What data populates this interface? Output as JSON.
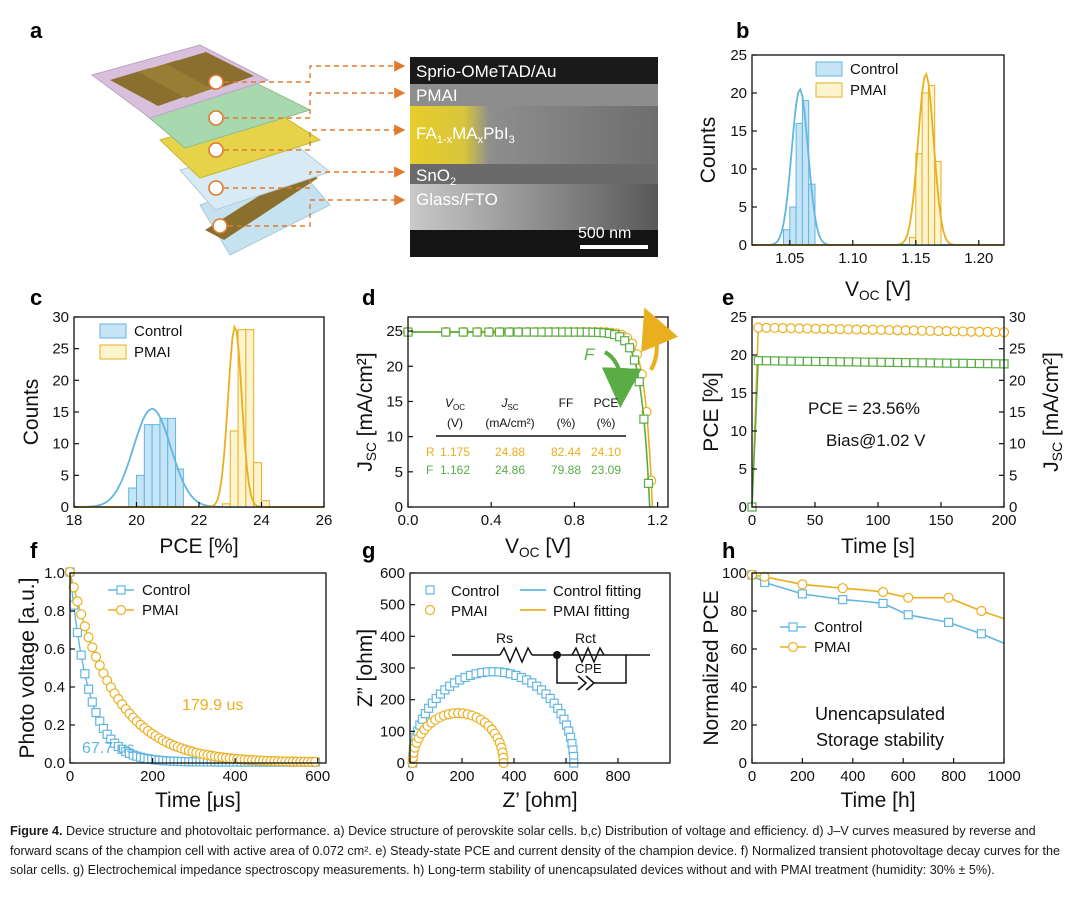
{
  "colors": {
    "control": "#62b6e1",
    "control_fill": "#c5e4f5",
    "pmai": "#eaaf1e",
    "pmai_fill": "#fbf4cf",
    "forward": "#5aac45"
  },
  "panels": {
    "a": {
      "letter": "a",
      "layer_labels": [
        "Sprio-OMeTAD/Au",
        "PMAI",
        "FA1-xMAxPbI3",
        "SnO2",
        "Glass/FTO"
      ],
      "perovskite_main": "FA",
      "perovskite_sub1": "1-x",
      "perovskite_mid": "MA",
      "perovskite_sub2": "x",
      "perovskite_end": "PbI",
      "perovskite_sub3": "3",
      "sno2_main": "SnO",
      "sno2_sub": "2",
      "scalebar": "500 nm"
    },
    "b": {
      "letter": "b",
      "xlabel_main": "V",
      "xlabel_sub": "OC",
      "xlabel_unit": " [V]",
      "ylabel": "Counts"
    },
    "c": {
      "letter": "c",
      "xlabel": "PCE [%]",
      "ylabel": "Counts"
    },
    "d": {
      "letter": "d",
      "xlabel_main": "V",
      "xlabel_sub": "OC",
      "xlabel_unit": " [V]",
      "ylabel_main": "J",
      "ylabel_sub": "SC",
      "ylabel_unit": " [mA/cm²]",
      "arrow_r": "R",
      "arrow_f": "F",
      "table": {
        "headers": [
          {
            "main": "V",
            "sub": "OC",
            "unit": "(V)"
          },
          {
            "main": "J",
            "sub": "SC",
            "unit": "(mA/cm²)"
          },
          {
            "main": "FF",
            "sub": "",
            "unit": "(%)"
          },
          {
            "main": "PCE",
            "sub": "",
            "unit": "(%)"
          }
        ],
        "rows": [
          {
            "label": "R",
            "values": [
              "1.175",
              "24.88",
              "82.44",
              "24.10"
            ]
          },
          {
            "label": "F",
            "values": [
              "1.162",
              "24.86",
              "79.88",
              "23.09"
            ]
          }
        ]
      }
    },
    "e": {
      "letter": "e",
      "xlabel": "Time [s]",
      "ylabel": "PCE [%]",
      "ylabel2_main": "J",
      "ylabel2_sub": "SC",
      "ylabel2_unit": " [mA/cm²]",
      "annotation_pce": "PCE = 23.56%",
      "annotation_bias": "Bias@1.02 V"
    },
    "f": {
      "letter": "f",
      "xlabel": "Time [μs]",
      "ylabel": "Photo voltage [a.u.]",
      "tau_control": "67.7 us",
      "tau_pmai": "179.9 us"
    },
    "g": {
      "letter": "g",
      "xlabel": "Z’ [ohm]",
      "ylabel": "Z” [ohm]",
      "circuit_rs": "Rs",
      "circuit_rct": "Rct",
      "circuit_cpe": "CPE"
    },
    "h": {
      "letter": "h",
      "xlabel": "Time [h]",
      "ylabel": "Normalized PCE",
      "annotation_1": "Unencapsulated",
      "annotation_2": "Storage stability"
    }
  },
  "caption": {
    "label": "Figure 4.",
    "text": "Device structure and photovoltaic performance. a) Device structure of perovskite solar cells. b,c) Distribution of voltage and efficiency. d) J–V curves measured by reverse and forward scans of the champion cell with active area of 0.072 cm². e) Steady-state PCE and current density of the champion device. f) Normalized transient photovoltage decay curves for the solar cells. g) Electrochemical impedance spectroscopy measurements. h) Long-term stability of unencapsulated devices without and with PMAI treatment (humidity: 30% ± 5%)."
  },
  "chart_data": [
    {
      "id": "b",
      "type": "bar",
      "title": "",
      "xlabel": "VOC [V]",
      "ylabel": "Counts",
      "xlim": [
        1.02,
        1.22
      ],
      "ylim": [
        0,
        25
      ],
      "xticks": [
        1.05,
        1.1,
        1.15,
        1.2
      ],
      "xtick_labels": [
        "1.05",
        "1.10",
        "1.15",
        "1.20"
      ],
      "yticks": [
        0,
        5,
        10,
        15,
        20,
        25
      ],
      "bin_width": 0.005,
      "series": [
        {
          "name": "Control",
          "kind": "histogram",
          "bins": [
            1.045,
            1.05,
            1.055,
            1.06,
            1.065,
            1.07
          ],
          "counts": [
            2,
            5,
            16,
            19,
            8,
            0
          ],
          "fit": {
            "mean": 1.058,
            "sigma": 0.0065,
            "peak": 20.5
          }
        },
        {
          "name": "PMAI",
          "kind": "histogram",
          "bins": [
            1.145,
            1.15,
            1.155,
            1.16,
            1.165
          ],
          "counts": [
            1,
            12,
            20,
            21,
            11
          ],
          "fit": {
            "mean": 1.158,
            "sigma": 0.0062,
            "peak": 22.5
          }
        }
      ],
      "legend": [
        "Control",
        "PMAI"
      ],
      "legend_position": "top-right"
    },
    {
      "id": "c",
      "type": "bar",
      "xlabel": "PCE [%]",
      "ylabel": "Counts",
      "xlim": [
        18,
        26
      ],
      "ylim": [
        0,
        30
      ],
      "xticks": [
        18,
        20,
        22,
        24,
        26
      ],
      "yticks": [
        0,
        5,
        10,
        15,
        20,
        25,
        30
      ],
      "bin_width": 0.25,
      "series": [
        {
          "name": "Control",
          "kind": "histogram",
          "bins": [
            19.75,
            20.0,
            20.25,
            20.5,
            20.75,
            21.0,
            21.25
          ],
          "counts": [
            3,
            5,
            13,
            13,
            14,
            14,
            6
          ],
          "fit": {
            "mean": 20.5,
            "sigma": 0.6,
            "peak": 15.5
          }
        },
        {
          "name": "PMAI",
          "kind": "histogram",
          "bins": [
            22.75,
            23.0,
            23.25,
            23.5,
            23.75,
            24.0
          ],
          "counts": [
            0.5,
            12,
            28,
            28,
            7,
            1
          ],
          "fit": {
            "mean": 23.15,
            "sigma": 0.22,
            "peak": 28.5
          }
        }
      ],
      "legend": [
        "Control",
        "PMAI"
      ],
      "legend_position": "top-left"
    },
    {
      "id": "d",
      "type": "line",
      "xlabel": "VOC [V]",
      "ylabel": "JSC [mA/cm2]",
      "xlim": [
        0,
        1.25
      ],
      "ylim": [
        0,
        27
      ],
      "xticks": [
        0.0,
        0.4,
        0.8,
        1.2
      ],
      "xtick_labels": [
        "0.0",
        "0.4",
        "0.8",
        "1.2"
      ],
      "yticks": [
        0,
        5,
        10,
        15,
        20,
        25
      ],
      "series": [
        {
          "name": "R",
          "voc": 1.175,
          "jsc": 24.88,
          "n_points": 30
        },
        {
          "name": "F",
          "voc": 1.162,
          "jsc": 24.86,
          "n_points": 30
        }
      ]
    },
    {
      "id": "e",
      "type": "line",
      "xlabel": "Time [s]",
      "ylabel": "PCE [%]",
      "ylabel_right": "JSC [mA/cm2]",
      "xlim": [
        0,
        200
      ],
      "ylim": [
        0,
        25
      ],
      "ylim_right": [
        0,
        30
      ],
      "xticks": [
        0,
        50,
        100,
        150,
        200
      ],
      "yticks": [
        0,
        5,
        10,
        15,
        20,
        25
      ],
      "yticks_right": [
        0,
        5,
        10,
        15,
        20,
        25,
        30
      ],
      "series": [
        {
          "name": "PCE",
          "axis": "left",
          "start": 23.6,
          "end": 23.0
        },
        {
          "name": "JSC",
          "axis": "right",
          "start": 23.1,
          "end": 22.6
        }
      ]
    },
    {
      "id": "f",
      "type": "line",
      "xlabel": "Time [μs]",
      "ylabel": "Photo voltage [a.u.]",
      "xlim": [
        0,
        620
      ],
      "ylim": [
        0,
        1.0
      ],
      "xticks": [
        0,
        200,
        400,
        600
      ],
      "yticks": [
        0.0,
        0.2,
        0.4,
        0.6,
        0.8,
        1.0
      ],
      "series": [
        {
          "name": "Control",
          "tau": 67.7,
          "offset": 0.0
        },
        {
          "name": "PMAI",
          "tau": 179.9,
          "offset": 0.0
        }
      ],
      "legend": [
        "Control",
        "PMAI"
      ]
    },
    {
      "id": "g",
      "type": "scatter",
      "xlabel": "Z’ [ohm]",
      "ylabel": "Z” [ohm]",
      "xlim": [
        0,
        1000
      ],
      "ylim": [
        0,
        600
      ],
      "xticks": [
        0,
        200,
        400,
        600,
        800
      ],
      "yticks": [
        0,
        100,
        200,
        300,
        400,
        500,
        600
      ],
      "series": [
        {
          "name": "Control",
          "rs": 10,
          "rct": 620
        },
        {
          "name": "PMAI",
          "rs": 10,
          "rct": 350
        }
      ],
      "legend": [
        "Control",
        "PMAI",
        "Control fitting",
        "PMAI fitting"
      ]
    },
    {
      "id": "h",
      "type": "line",
      "xlabel": "Time [h]",
      "ylabel": "Normalized PCE",
      "xlim": [
        0,
        1000
      ],
      "ylim": [
        0,
        100
      ],
      "xticks": [
        0,
        200,
        400,
        600,
        800,
        1000
      ],
      "yticks": [
        0,
        20,
        40,
        60,
        80,
        100
      ],
      "series": [
        {
          "name": "Control",
          "x": [
            0,
            50,
            200,
            360,
            450,
            520,
            620,
            780,
            910,
            1000
          ],
          "y": [
            99,
            95,
            89,
            86,
            85,
            84,
            78,
            74,
            68,
            63
          ]
        },
        {
          "name": "PMAI",
          "x": [
            0,
            50,
            200,
            360,
            450,
            520,
            620,
            780,
            910,
            1000
          ],
          "y": [
            99,
            98,
            94,
            92,
            91,
            90,
            87,
            87,
            80,
            76
          ]
        }
      ],
      "legend": [
        "Control",
        "PMAI"
      ]
    }
  ]
}
